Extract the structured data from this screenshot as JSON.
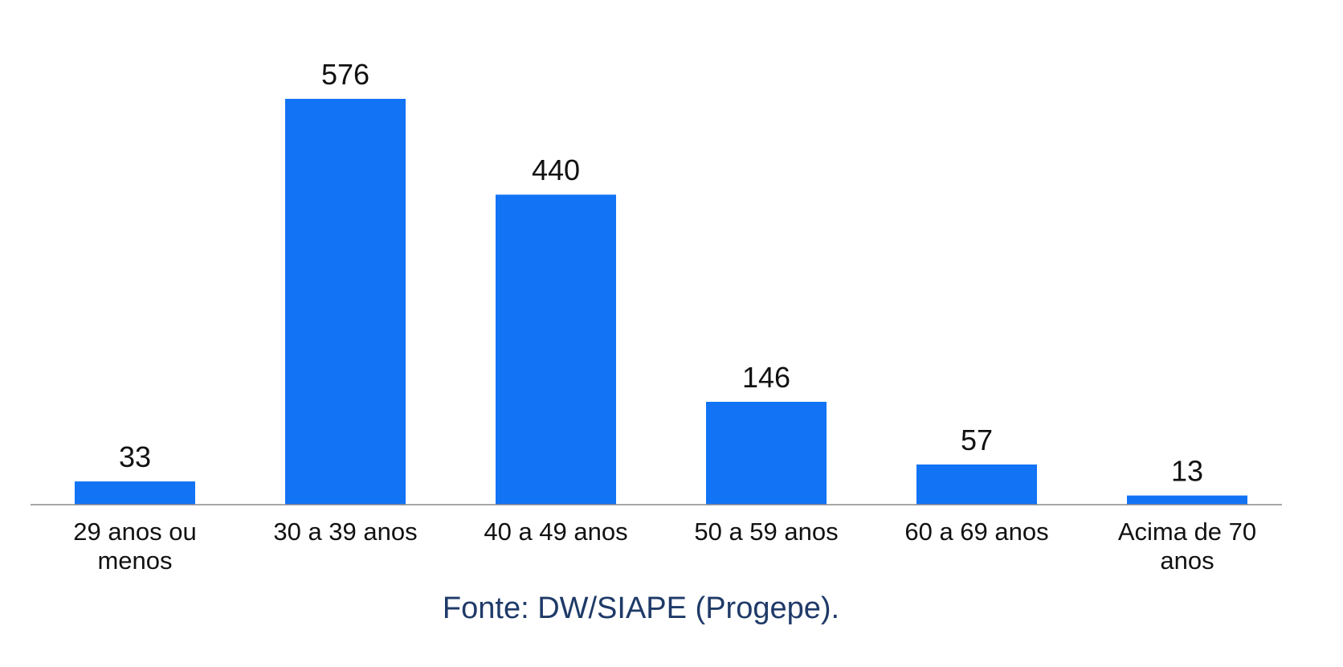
{
  "chart_data": {
    "type": "bar",
    "categories": [
      [
        "29 anos ou",
        "menos"
      ],
      [
        "30 a 39 anos"
      ],
      [
        "40 a 49 anos"
      ],
      [
        "50 a 59 anos"
      ],
      [
        "60 a 69 anos"
      ],
      [
        "Acima de 70",
        "anos"
      ]
    ],
    "values": [
      33,
      576,
      440,
      146,
      57,
      13
    ],
    "ylim": [
      0,
      576
    ],
    "grid": false,
    "legend": "none",
    "bar_color": "#1273f5",
    "axis_color": "#8a8a8a",
    "label_color": "#111111"
  },
  "source_note": "Fonte: DW/SIAPE (Progepe)."
}
